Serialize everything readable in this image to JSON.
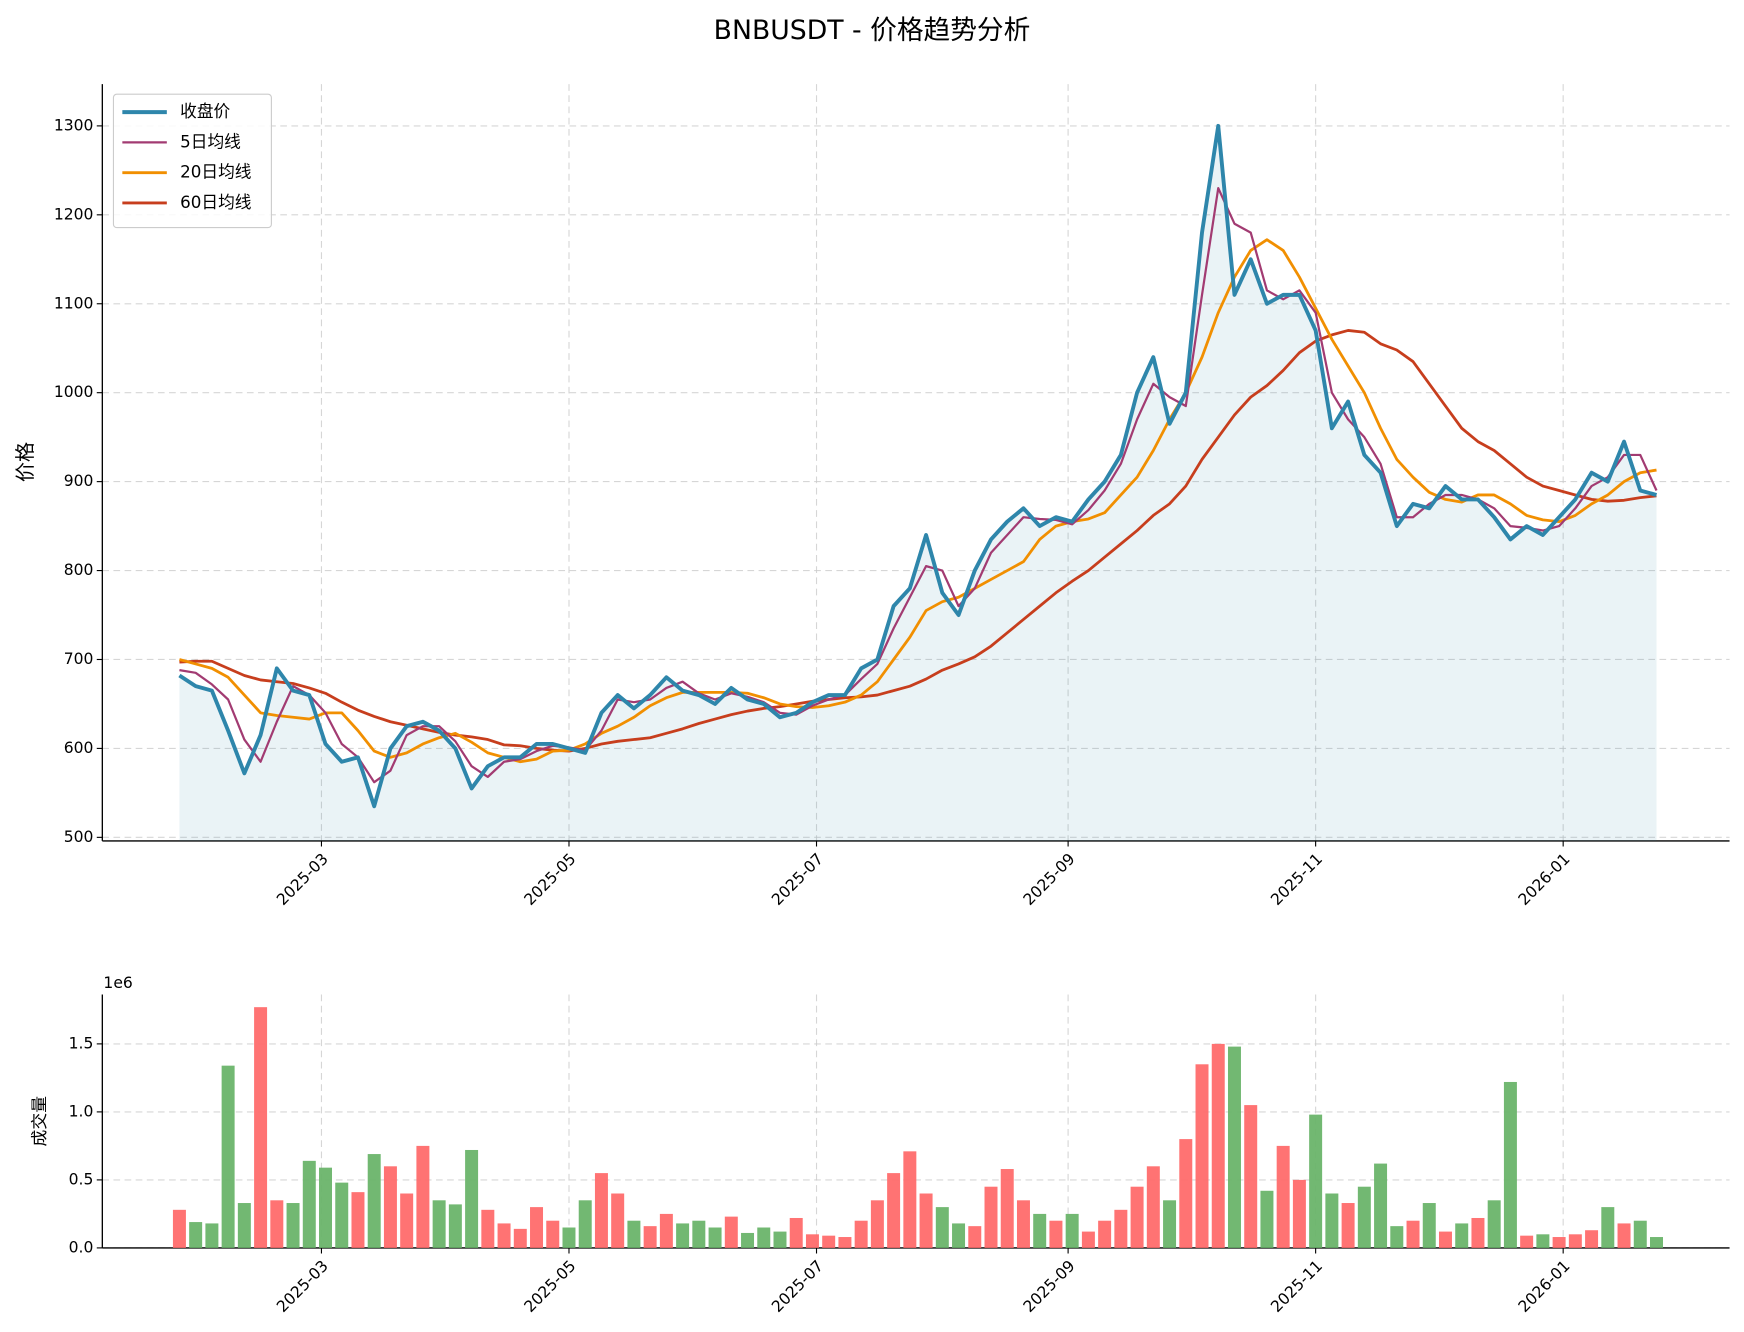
{
  "chart_data": [
    {
      "type": "line",
      "title": "BNBUSDT - 价格趋势分析",
      "ylabel": "价格",
      "legend": "upper left",
      "grid": true,
      "xlim": [
        "2025-01-06",
        "2026-02-11"
      ],
      "xticks": [
        {
          "value": "2025-03-01",
          "label": "2025-03"
        },
        {
          "value": "2025-05-01",
          "label": "2025-05"
        },
        {
          "value": "2025-07-01",
          "label": "2025-07"
        },
        {
          "value": "2025-09-01",
          "label": "2025-09"
        },
        {
          "value": "2025-11-01",
          "label": "2025-11"
        },
        {
          "value": "2026-01-01",
          "label": "2026-01"
        }
      ],
      "ylim": [
        496,
        1347
      ],
      "yticks": [
        500,
        600,
        700,
        800,
        900,
        1000,
        1100,
        1200,
        1300
      ],
      "fill_color": "#2e86ab",
      "x": [
        "2025-01-25",
        "2025-01-29",
        "2025-02-02",
        "2025-02-06",
        "2025-02-10",
        "2025-02-14",
        "2025-02-18",
        "2025-02-22",
        "2025-02-26",
        "2025-03-02",
        "2025-03-06",
        "2025-03-10",
        "2025-03-14",
        "2025-03-18",
        "2025-03-22",
        "2025-03-26",
        "2025-03-30",
        "2025-04-03",
        "2025-04-07",
        "2025-04-11",
        "2025-04-15",
        "2025-04-19",
        "2025-04-23",
        "2025-04-27",
        "2025-05-01",
        "2025-05-05",
        "2025-05-09",
        "2025-05-13",
        "2025-05-17",
        "2025-05-21",
        "2025-05-25",
        "2025-05-29",
        "2025-06-02",
        "2025-06-06",
        "2025-06-10",
        "2025-06-14",
        "2025-06-18",
        "2025-06-22",
        "2025-06-26",
        "2025-06-30",
        "2025-07-04",
        "2025-07-08",
        "2025-07-12",
        "2025-07-16",
        "2025-07-20",
        "2025-07-24",
        "2025-07-28",
        "2025-08-01",
        "2025-08-05",
        "2025-08-09",
        "2025-08-13",
        "2025-08-17",
        "2025-08-21",
        "2025-08-25",
        "2025-08-29",
        "2025-09-02",
        "2025-09-06",
        "2025-09-10",
        "2025-09-14",
        "2025-09-18",
        "2025-09-22",
        "2025-09-26",
        "2025-09-30",
        "2025-10-04",
        "2025-10-08",
        "2025-10-12",
        "2025-10-16",
        "2025-10-20",
        "2025-10-24",
        "2025-10-28",
        "2025-11-01",
        "2025-11-05",
        "2025-11-09",
        "2025-11-13",
        "2025-11-17",
        "2025-11-21",
        "2025-11-25",
        "2025-11-29",
        "2025-12-03",
        "2025-12-07",
        "2025-12-11",
        "2025-12-15",
        "2025-12-19",
        "2025-12-23",
        "2025-12-27",
        "2025-12-31",
        "2026-01-04",
        "2026-01-08",
        "2026-01-12",
        "2026-01-16",
        "2026-01-20",
        "2026-01-24"
      ],
      "series": [
        {
          "name": "收盘价",
          "color": "#2e86ab",
          "width": 3.5,
          "values": [
            682,
            670,
            665,
            620,
            572,
            615,
            690,
            665,
            660,
            605,
            585,
            590,
            535,
            600,
            625,
            630,
            620,
            600,
            555,
            580,
            590,
            590,
            605,
            605,
            600,
            595,
            640,
            660,
            645,
            660,
            680,
            665,
            660,
            650,
            668,
            655,
            650,
            635,
            640,
            652,
            660,
            660,
            690,
            700,
            760,
            780,
            840,
            775,
            750,
            800,
            835,
            855,
            870,
            850,
            860,
            855,
            880,
            900,
            930,
            1000,
            1040,
            965,
            1000,
            1180,
            1300,
            1110,
            1150,
            1100,
            1110,
            1110,
            1070,
            960,
            990,
            930,
            910,
            850,
            875,
            870,
            895,
            880,
            880,
            860,
            835,
            850,
            840,
            860,
            880,
            910,
            900,
            945,
            890,
            885
          ]
        },
        {
          "name": "5日均线",
          "color": "#a23b72",
          "width": 2,
          "values": [
            688,
            685,
            672,
            655,
            610,
            585,
            630,
            670,
            660,
            640,
            605,
            590,
            562,
            575,
            615,
            625,
            625,
            608,
            580,
            568,
            585,
            588,
            597,
            603,
            601,
            598,
            620,
            655,
            652,
            655,
            668,
            675,
            662,
            655,
            662,
            658,
            652,
            640,
            638,
            648,
            655,
            660,
            678,
            695,
            735,
            770,
            805,
            800,
            760,
            780,
            820,
            840,
            860,
            858,
            857,
            852,
            868,
            890,
            920,
            970,
            1010,
            995,
            985,
            1110,
            1230,
            1190,
            1180,
            1115,
            1105,
            1115,
            1090,
            1000,
            970,
            950,
            920,
            860,
            860,
            875,
            885,
            885,
            880,
            870,
            850,
            848,
            845,
            850,
            870,
            895,
            905,
            930,
            930,
            890
          ]
        },
        {
          "name": "20日均线",
          "color": "#f18f01",
          "width": 2.5,
          "values": [
            700,
            695,
            690,
            680,
            660,
            640,
            637,
            635,
            633,
            640,
            640,
            620,
            597,
            590,
            595,
            605,
            612,
            617,
            607,
            595,
            590,
            585,
            588,
            597,
            598,
            605,
            617,
            625,
            635,
            648,
            657,
            663,
            663,
            663,
            663,
            662,
            657,
            650,
            647,
            646,
            648,
            652,
            660,
            675,
            700,
            725,
            755,
            765,
            770,
            780,
            790,
            800,
            810,
            835,
            850,
            855,
            858,
            865,
            885,
            905,
            935,
            970,
            1000,
            1040,
            1090,
            1130,
            1160,
            1172,
            1160,
            1130,
            1095,
            1060,
            1030,
            1000,
            960,
            925,
            905,
            888,
            880,
            877,
            885,
            885,
            875,
            862,
            857,
            855,
            862,
            875,
            885,
            900,
            910,
            913
          ]
        },
        {
          "name": "60日均线",
          "color": "#c73e1d",
          "width": 2.5,
          "values": [
            697,
            698,
            698,
            690,
            682,
            677,
            675,
            673,
            668,
            662,
            652,
            643,
            636,
            630,
            626,
            622,
            618,
            615,
            613,
            610,
            604,
            603,
            600,
            598,
            597,
            600,
            605,
            608,
            610,
            612,
            617,
            622,
            628,
            633,
            638,
            642,
            645,
            647,
            650,
            653,
            655,
            657,
            658,
            660,
            665,
            670,
            678,
            688,
            695,
            703,
            715,
            730,
            745,
            760,
            775,
            788,
            800,
            815,
            830,
            845,
            862,
            875,
            895,
            925,
            950,
            975,
            995,
            1008,
            1025,
            1045,
            1058,
            1065,
            1070,
            1068,
            1055,
            1048,
            1035,
            1010,
            985,
            960,
            945,
            935,
            920,
            905,
            895,
            890,
            885,
            880,
            878,
            879,
            882,
            884
          ]
        }
      ]
    },
    {
      "type": "bar",
      "ylabel": "成交量",
      "offset_text": "1e6",
      "grid": true,
      "up_color": "#ff6b6b",
      "down_color": "#6ab46a",
      "xlim": [
        "2025-01-06",
        "2026-02-11"
      ],
      "xticks": [
        {
          "value": "2025-03-01",
          "label": "2025-03"
        },
        {
          "value": "2025-05-01",
          "label": "2025-05"
        },
        {
          "value": "2025-07-01",
          "label": "2025-07"
        },
        {
          "value": "2025-09-01",
          "label": "2025-09"
        },
        {
          "value": "2025-11-01",
          "label": "2025-11"
        },
        {
          "value": "2026-01-01",
          "label": "2026-01"
        }
      ],
      "ylim": [
        0,
        1863000
      ],
      "yticks": [
        {
          "value": 0,
          "label": "0.0"
        },
        {
          "value": 500000,
          "label": "0.5"
        },
        {
          "value": 1000000,
          "label": "1.0"
        },
        {
          "value": 1500000,
          "label": "1.5"
        }
      ],
      "values": [
        280000,
        190000,
        180000,
        1340000,
        330000,
        1770000,
        350000,
        330000,
        640000,
        590000,
        480000,
        410000,
        690000,
        600000,
        400000,
        750000,
        350000,
        320000,
        720000,
        280000,
        180000,
        140000,
        300000,
        200000,
        150000,
        350000,
        550000,
        400000,
        200000,
        160000,
        250000,
        180000,
        200000,
        150000,
        230000,
        110000,
        150000,
        120000,
        220000,
        100000,
        90000,
        80000,
        200000,
        350000,
        550000,
        710000,
        400000,
        300000,
        180000,
        160000,
        450000,
        580000,
        350000,
        250000,
        200000,
        250000,
        120000,
        200000,
        280000,
        450000,
        600000,
        350000,
        800000,
        1350000,
        1500000,
        1480000,
        1050000,
        420000,
        750000,
        500000,
        980000,
        400000,
        330000,
        450000,
        620000,
        160000,
        200000,
        330000,
        120000,
        180000,
        220000,
        350000,
        1220000,
        90000,
        100000,
        80000,
        100000,
        130000,
        300000,
        180000,
        200000,
        80000
      ]
    }
  ]
}
